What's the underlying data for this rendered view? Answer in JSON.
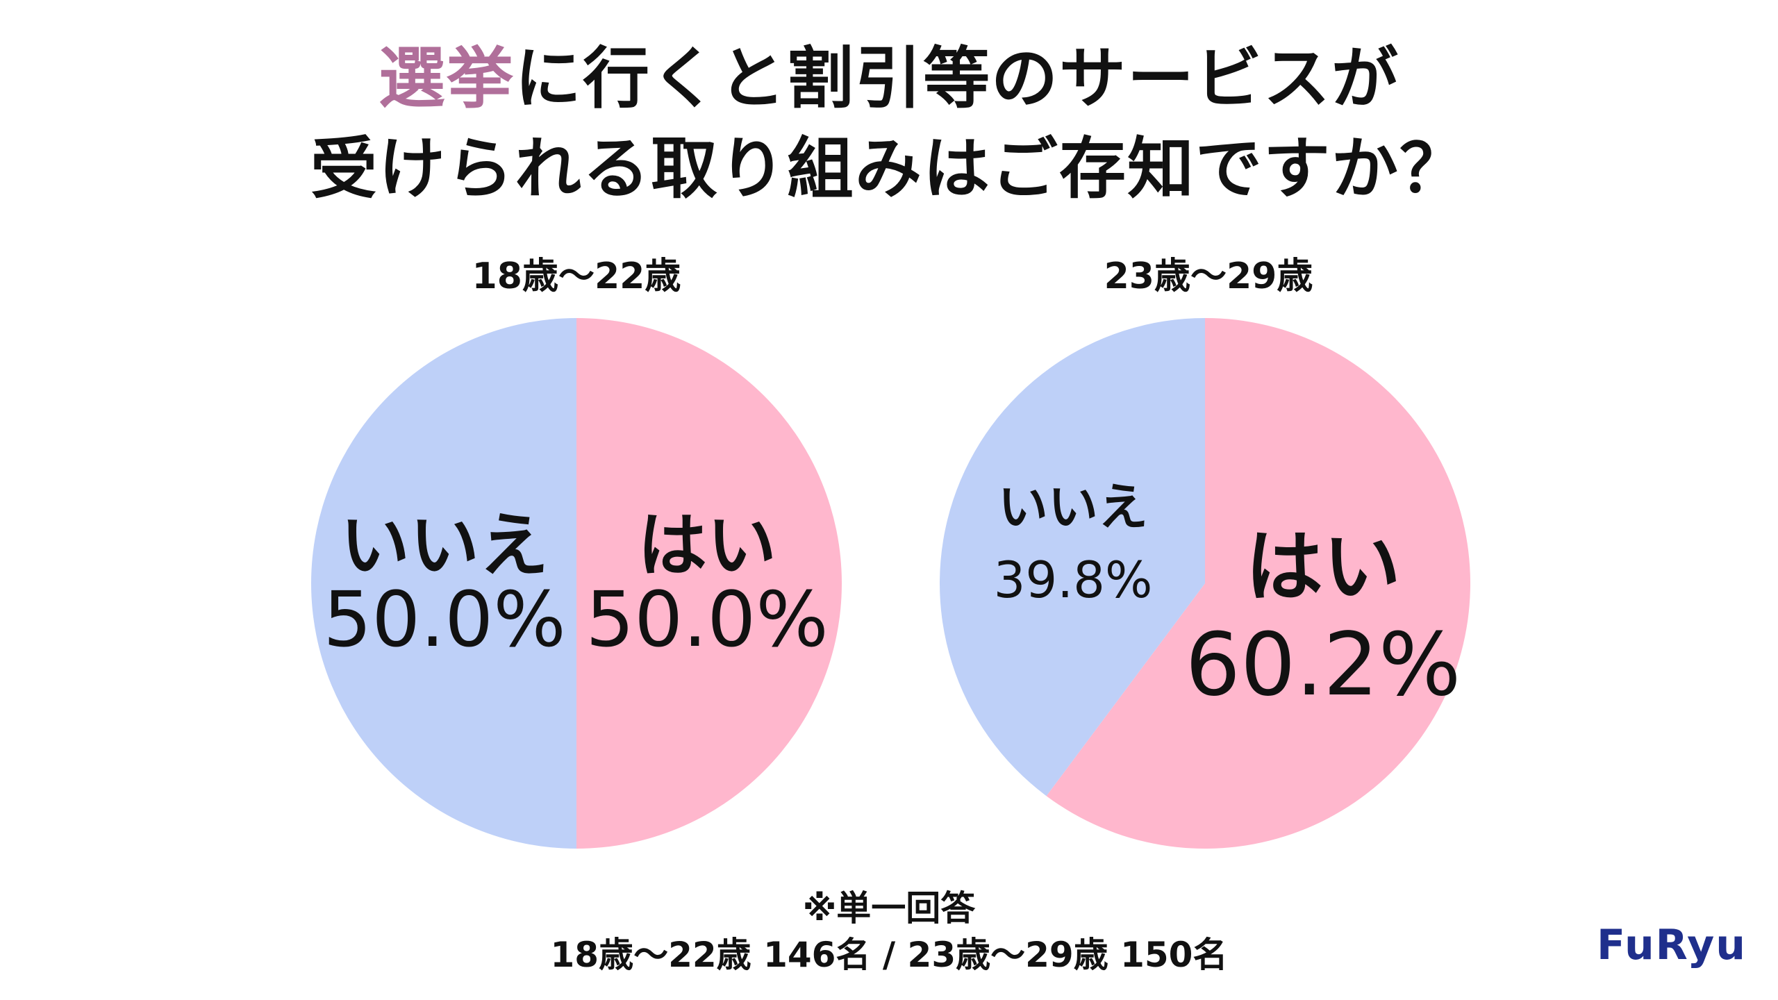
{
  "title": {
    "line1_accent": "選挙",
    "line1_rest": "に行くと割引等のサービスが",
    "line2": "受けられる取り組みはご存知ですか？"
  },
  "colors": {
    "yes": "#ffb7cd",
    "no": "#bed0f8",
    "accent": "#b06f9a",
    "logo": "#1f2f8c"
  },
  "chart_data": [
    {
      "type": "pie",
      "title": "18歳～22歳",
      "slices": [
        {
          "label": "はい",
          "value": 50.0,
          "value_label": "50.0%"
        },
        {
          "label": "いいえ",
          "value": 50.0,
          "value_label": "50.0%"
        }
      ]
    },
    {
      "type": "pie",
      "title": "23歳～29歳",
      "slices": [
        {
          "label": "はい",
          "value": 60.2,
          "value_label": "60.2%"
        },
        {
          "label": "いいえ",
          "value": 39.8,
          "value_label": "39.8%"
        }
      ]
    }
  ],
  "footnote": {
    "line1": "※単一回答",
    "line2": "18歳～22歳 146名 / 23歳～29歳 150名"
  },
  "logo": {
    "text": "FuRyu"
  }
}
